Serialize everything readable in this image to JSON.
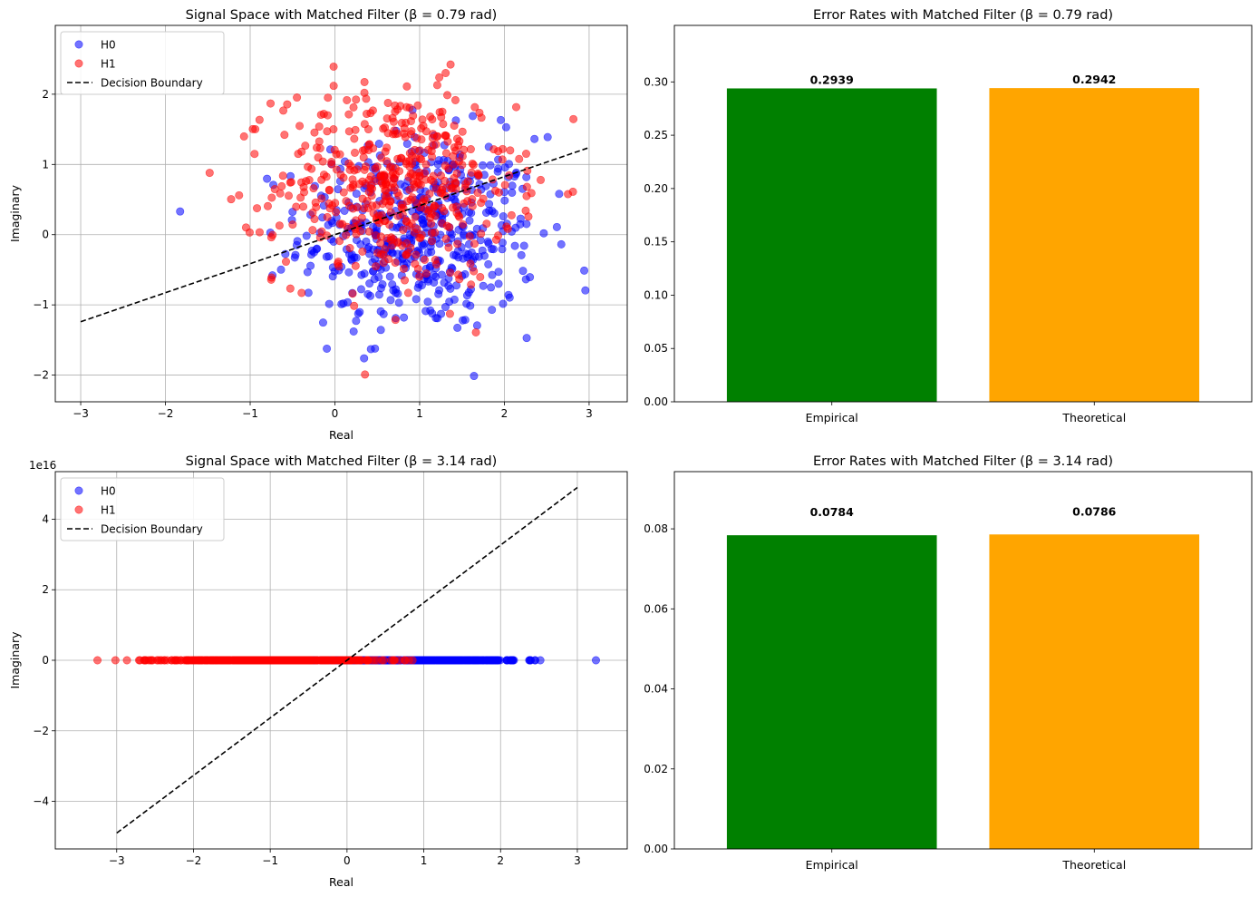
{
  "chart_data": [
    {
      "type": "scatter",
      "title": "Signal Space with Matched Filter (β = 0.79 rad)",
      "xlabel": "Real",
      "ylabel": "Imaginary",
      "xlim": [
        -3.3,
        3.45
      ],
      "ylim": [
        -2.38,
        2.98
      ],
      "xticks": [
        -3,
        -2,
        -1,
        0,
        1,
        2,
        3
      ],
      "xtick_labels": [
        "−3",
        "−2",
        "−1",
        "0",
        "1",
        "2",
        "3"
      ],
      "yticks": [
        -2,
        -1,
        0,
        1,
        2
      ],
      "ytick_labels": [
        "−2",
        "−1",
        "0",
        "1",
        "2"
      ],
      "grid": true,
      "legend_position": "top-left",
      "legend": [
        "H0",
        "H1",
        "Decision Boundary"
      ],
      "series": [
        {
          "name": "H0",
          "color": "#0000ff",
          "opacity": 0.55,
          "center": [
            1.0,
            0.0
          ],
          "spread": 0.7,
          "count": 500
        },
        {
          "name": "H1",
          "color": "#ff0000",
          "opacity": 0.55,
          "center": [
            0.71,
            0.71
          ],
          "spread": 0.7,
          "count": 500
        },
        {
          "name": "Decision Boundary",
          "style": "dashed",
          "color": "#000000",
          "x": [
            -3,
            3
          ],
          "y": [
            -1.24,
            1.24
          ]
        }
      ]
    },
    {
      "type": "bar",
      "title": "Error Rates with Matched Filter (β = 0.79 rad)",
      "categories": [
        "Empirical",
        "Theoretical"
      ],
      "values": [
        0.2939,
        0.2942
      ],
      "value_labels": [
        "0.2939",
        "0.2942"
      ],
      "colors": [
        "#008000",
        "#ffa500"
      ],
      "ylim": [
        0,
        0.353
      ],
      "yticks": [
        0,
        0.05,
        0.1,
        0.15,
        0.2,
        0.25,
        0.3
      ],
      "ytick_labels": [
        "0.00",
        "0.05",
        "0.10",
        "0.15",
        "0.20",
        "0.25",
        "0.30"
      ]
    },
    {
      "type": "scatter",
      "title": "Signal Space with Matched Filter (β = 3.14 rad)",
      "xlabel": "Real",
      "ylabel": "Imaginary",
      "offset_label": "1e16",
      "xlim": [
        -3.8,
        3.65
      ],
      "ylim": [
        -5.35,
        5.35
      ],
      "xticks": [
        -3,
        -2,
        -1,
        0,
        1,
        2,
        3
      ],
      "xtick_labels": [
        "−3",
        "−2",
        "−1",
        "0",
        "1",
        "2",
        "3"
      ],
      "yticks": [
        -4,
        -2,
        0,
        2,
        4
      ],
      "ytick_labels": [
        "−4",
        "−2",
        "0",
        "2",
        "4"
      ],
      "grid": true,
      "legend_position": "top-left",
      "legend": [
        "H0",
        "H1",
        "Decision Boundary"
      ],
      "series": [
        {
          "name": "H0",
          "color": "#0000ff",
          "opacity": 0.55,
          "center": [
            1.0,
            0.0
          ],
          "spread": 0.7,
          "count": 500
        },
        {
          "name": "H1",
          "color": "#ff0000",
          "opacity": 0.55,
          "center": [
            -1.0,
            0.0
          ],
          "spread": 0.7,
          "count": 500
        },
        {
          "name": "Decision Boundary",
          "style": "dashed",
          "color": "#000000",
          "x": [
            -3,
            3
          ],
          "y": [
            -4.9,
            4.9
          ]
        }
      ]
    },
    {
      "type": "bar",
      "title": "Error Rates with Matched Filter (β = 3.14 rad)",
      "categories": [
        "Empirical",
        "Theoretical"
      ],
      "values": [
        0.0784,
        0.0786
      ],
      "value_labels": [
        "0.0784",
        "0.0786"
      ],
      "colors": [
        "#008000",
        "#ffa500"
      ],
      "ylim": [
        0,
        0.0943
      ],
      "yticks": [
        0,
        0.02,
        0.04,
        0.06,
        0.08
      ],
      "ytick_labels": [
        "0.00",
        "0.02",
        "0.04",
        "0.06",
        "0.08"
      ]
    }
  ]
}
